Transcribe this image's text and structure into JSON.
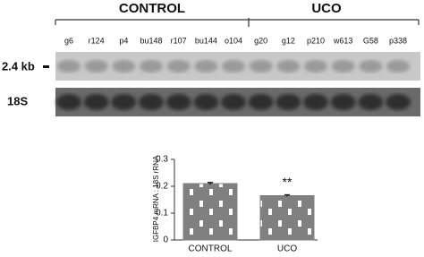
{
  "blot": {
    "groups": [
      "CONTROL",
      "UCO"
    ],
    "lanes": [
      "g6",
      "r124",
      "p4",
      "bu148",
      "r107",
      "bu144",
      "o104",
      "g20",
      "g12",
      "p210",
      "w613",
      "G58",
      "p338"
    ],
    "markers": [
      "2.4 kb",
      "18S"
    ]
  },
  "chart_data": {
    "type": "bar",
    "y_label": "IGFBP4 mRNA : 18S rRNA",
    "categories": [
      "CONTROL",
      "UCO"
    ],
    "values": [
      0.21,
      0.165
    ],
    "errors": [
      0.004,
      0.003
    ],
    "color": "#808080",
    "ylim": [
      0,
      0.3
    ],
    "yticks": [
      0,
      0.1,
      0.2,
      0.3
    ],
    "annotation": "**"
  }
}
